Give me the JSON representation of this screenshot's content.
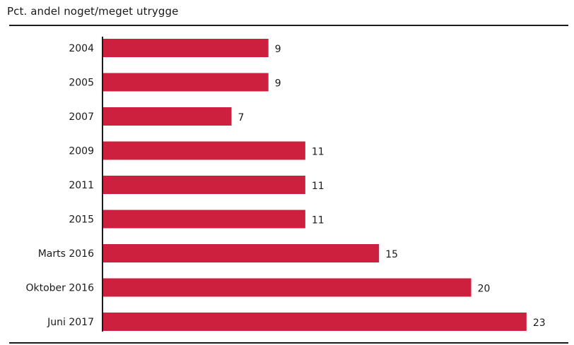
{
  "chart_data": {
    "type": "bar",
    "orientation": "horizontal",
    "title": "Pct. andel noget/meget utrygge",
    "categories": [
      "2004",
      "2005",
      "2007",
      "2009",
      "2011",
      "2015",
      "Marts 2016",
      "Oktober 2016",
      "Juni 2017"
    ],
    "values": [
      9,
      9,
      7,
      11,
      11,
      11,
      15,
      20,
      23
    ],
    "value_labels": [
      "9",
      "9",
      "7",
      "11",
      "11",
      "11",
      "15",
      "20",
      "23"
    ],
    "xlim": [
      0,
      23.8
    ],
    "grid": false,
    "legend": "none",
    "data_labels": true,
    "bar_color": "#cd1f3e",
    "axis_color": "#1a1a1a"
  }
}
